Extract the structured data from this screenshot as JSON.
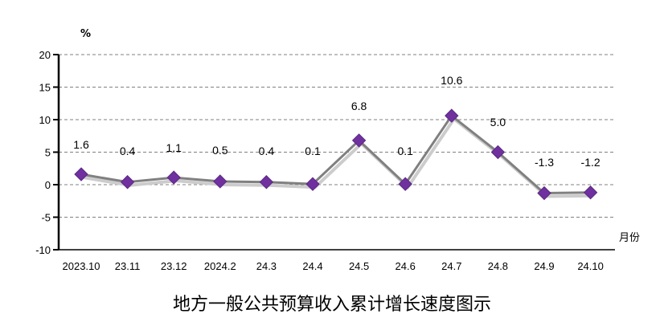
{
  "chart_data": {
    "type": "line",
    "title": "地方一般公共预算收入累计增长速度图示",
    "xlabel": "月份",
    "ylabel": "%",
    "categories": [
      "2023.10",
      "23.11",
      "23.12",
      "2024.2",
      "24.3",
      "24.4",
      "24.5",
      "24.6",
      "24.7",
      "24.8",
      "24.9",
      "24.10"
    ],
    "series": [
      {
        "name": "增长速度",
        "values": [
          1.6,
          0.4,
          1.1,
          0.5,
          0.4,
          0.1,
          6.8,
          0.1,
          10.6,
          5.0,
          -1.3,
          -1.2
        ]
      }
    ],
    "data_labels": [
      "1.6",
      "0.4",
      "1.1",
      "0.5",
      "0.4",
      "0.1",
      "6.8",
      "0.1",
      "10.6",
      "5.0",
      "-1.3",
      "-1.2"
    ],
    "ylim": [
      -10,
      20
    ],
    "yticks": [
      -10,
      -5,
      0,
      5,
      10,
      15,
      20
    ],
    "grid": true,
    "colors": {
      "line": "#808080",
      "marker": "#7030A0",
      "grid": "#808080"
    }
  }
}
